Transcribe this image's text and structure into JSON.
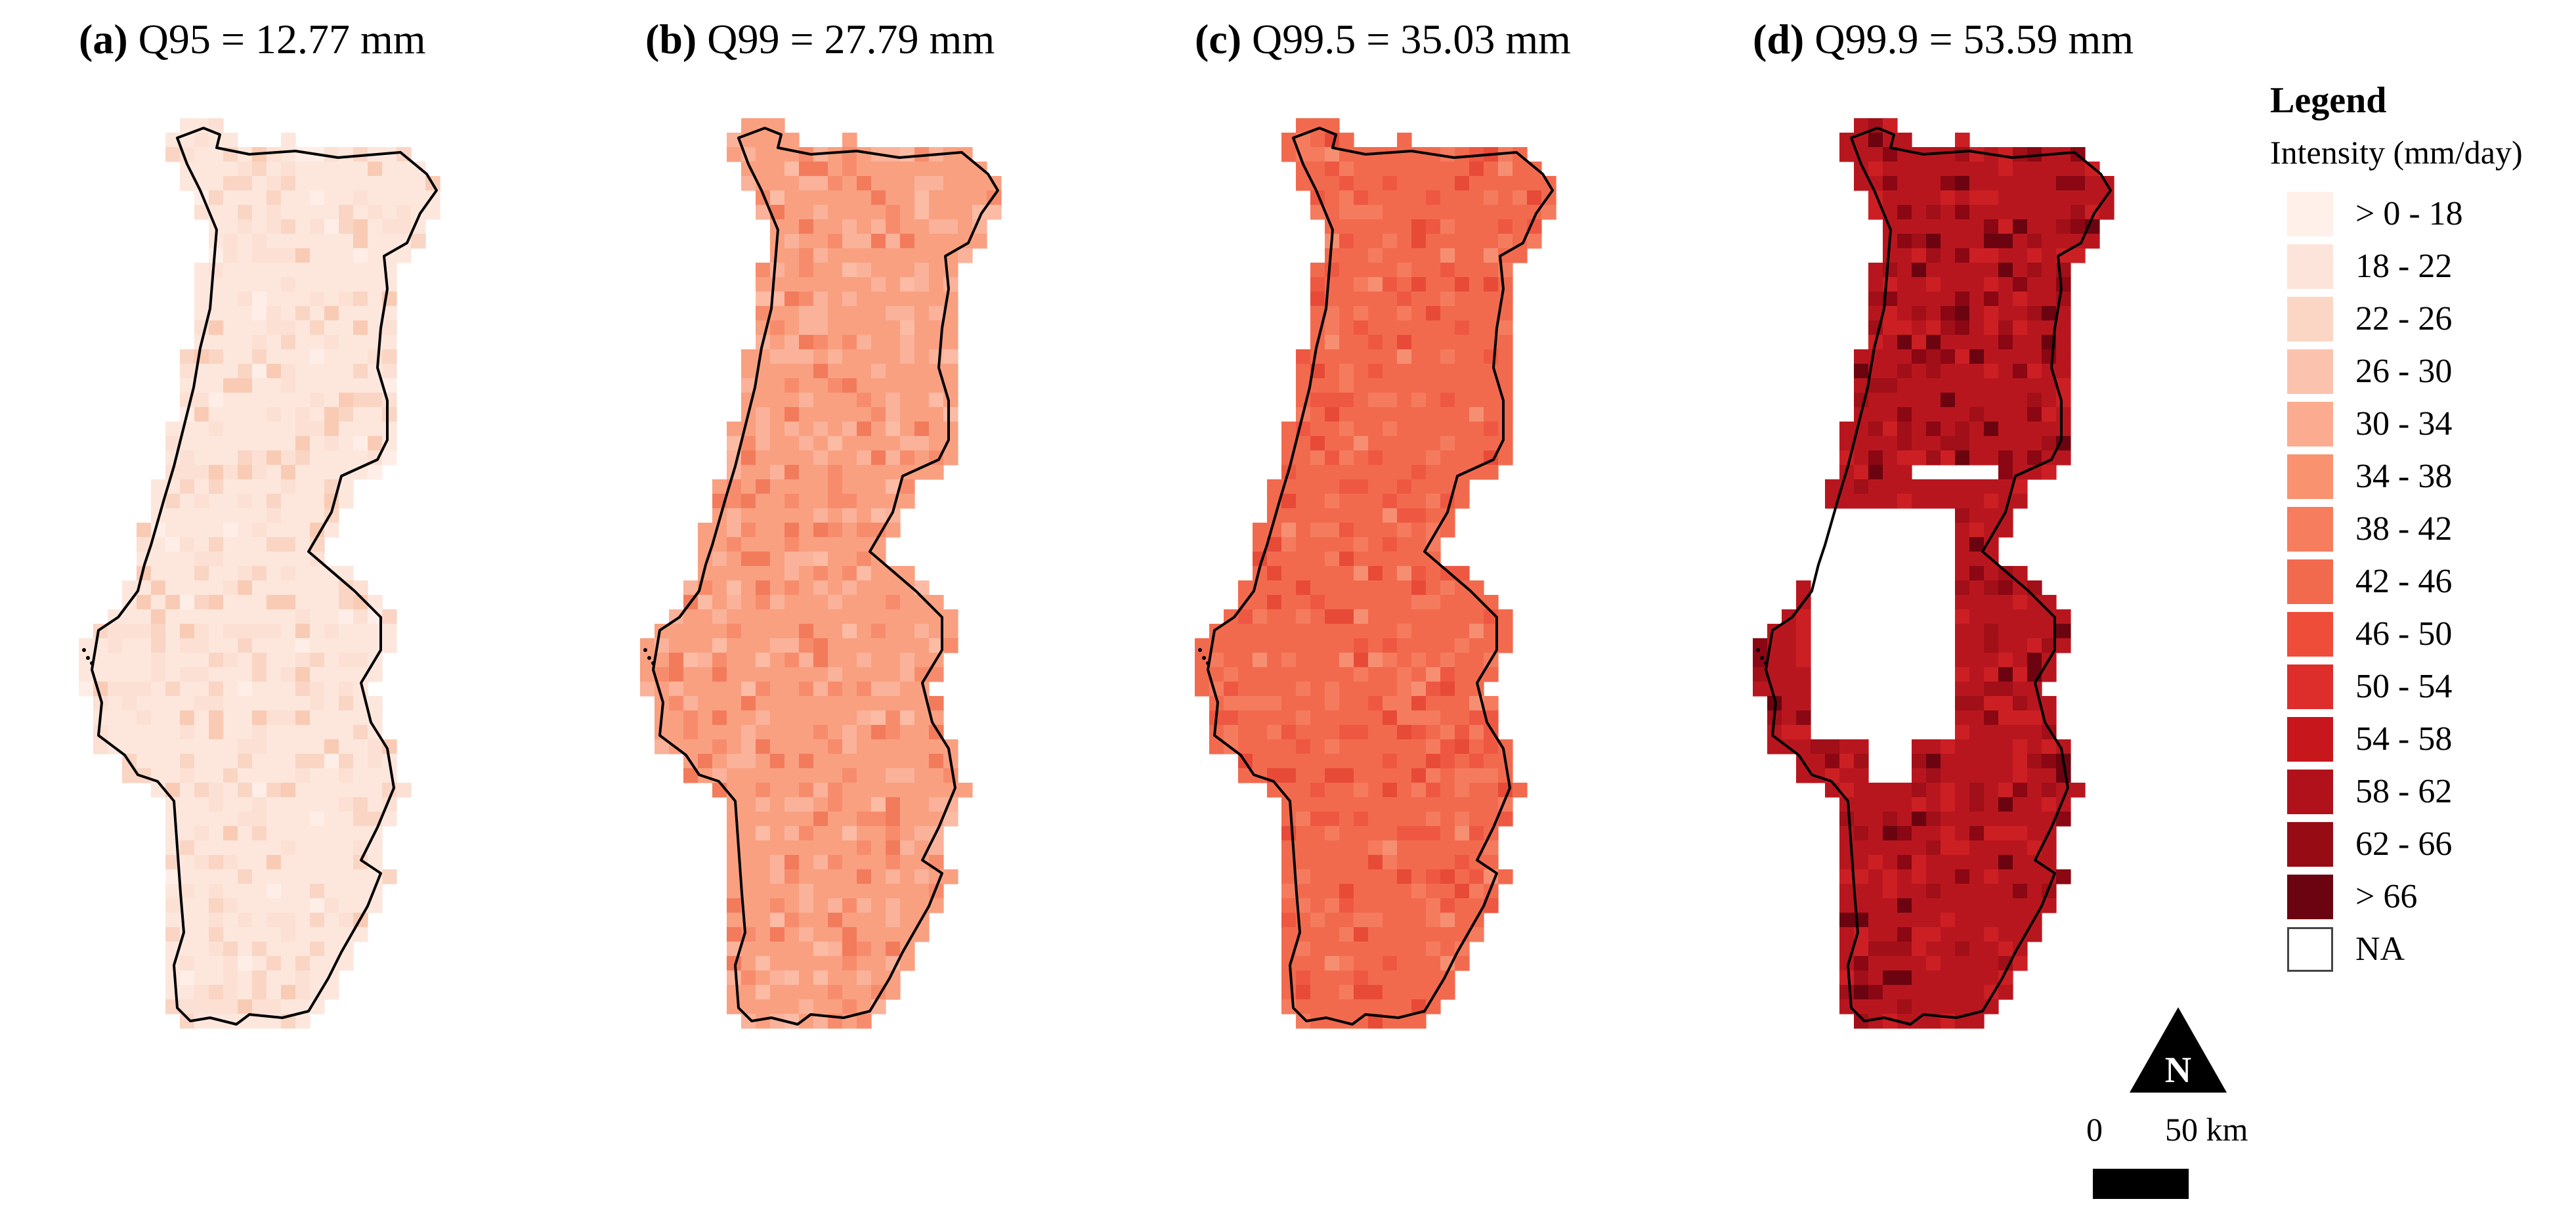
{
  "panels": [
    {
      "label": "(a)",
      "title": "Q95 = 12.77 mm",
      "base_color": "#fde7dd",
      "grid_colors": [
        "#fce0d3",
        "#fad5c4",
        "#f9cbb4",
        "#ffeee7"
      ]
    },
    {
      "label": "(b)",
      "title": "Q99 = 27.79 mm",
      "base_color": "#f9a081",
      "grid_colors": [
        "#fab29a",
        "#f78c6c",
        "#f27b5c",
        "#fcbba4"
      ]
    },
    {
      "label": "(c)",
      "title": "Q99.5 = 35.03 mm",
      "base_color": "#f26a4e",
      "grid_colors": [
        "#f57b5e",
        "#ee5842",
        "#e84a38",
        "#f68f72"
      ]
    },
    {
      "label": "(d)",
      "title": "Q99.9 = 53.59 mm",
      "base_color": "#b8161e",
      "grid_colors": [
        "#cc1f24",
        "#a10f18",
        "#8a0713",
        "#6b0410"
      ]
    }
  ],
  "legend": {
    "title": "Legend",
    "subtitle": "Intensity (mm/day)",
    "items": [
      {
        "label": "> 0 - 18",
        "color": "#fff0ea"
      },
      {
        "label": "18 - 22",
        "color": "#fde4da"
      },
      {
        "label": "22 - 26",
        "color": "#fcd6c5"
      },
      {
        "label": "26 - 30",
        "color": "#fbc3ad"
      },
      {
        "label": "30 - 34",
        "color": "#fbab90"
      },
      {
        "label": "34 - 38",
        "color": "#f9926f"
      },
      {
        "label": "38 - 42",
        "color": "#f67d5e"
      },
      {
        "label": "42 - 46",
        "color": "#f26a4e"
      },
      {
        "label": "46 - 50",
        "color": "#ee4d3a"
      },
      {
        "label": "50 - 54",
        "color": "#dd2e2c"
      },
      {
        "label": "54 - 58",
        "color": "#c8161d"
      },
      {
        "label": "58 - 62",
        "color": "#b0111b"
      },
      {
        "label": "62 - 66",
        "color": "#970b15"
      },
      {
        "label": "> 66",
        "color": "#6b0410"
      }
    ],
    "na_label": "NA"
  },
  "north_arrow": {
    "label": "N"
  },
  "scale_bar": {
    "start_label": "0",
    "end_label": "50 km"
  }
}
